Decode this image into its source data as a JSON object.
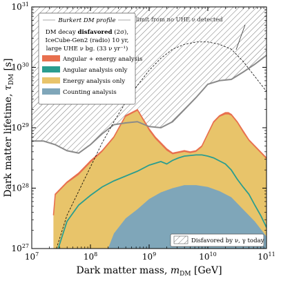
{
  "chart_data": {
    "type": "area",
    "xlabel": "Dark matter mass, ",
    "xlabel_symbol": "m",
    "xlabel_sub": "DM",
    "xlabel_unit": " [GeV]",
    "ylabel": "Dark matter lifetime, ",
    "ylabel_symbol": "τ",
    "ylabel_sub": "DM",
    "ylabel_unit": " [s]",
    "xscale": "log",
    "yscale": "log",
    "xlim": [
      10000000.0,
      100000000000.0
    ],
    "ylim": [
      1e+27,
      1e+31
    ],
    "x_ticks": [
      {
        "base": "10",
        "exp": "7"
      },
      {
        "base": "10",
        "exp": "8"
      },
      {
        "base": "10",
        "exp": "9"
      },
      {
        "base": "10",
        "exp": "10"
      },
      {
        "base": "10",
        "exp": "11"
      }
    ],
    "y_ticks": [
      {
        "base": "10",
        "exp": "27"
      },
      {
        "base": "10",
        "exp": "28"
      },
      {
        "base": "10",
        "exp": "29"
      },
      {
        "base": "10",
        "exp": "30"
      },
      {
        "base": "10",
        "exp": "31"
      }
    ],
    "legend": {
      "placement": "top-left",
      "title": "Burkert DM profile",
      "subtitle_lines": [
        {
          "pre": "DM decay ",
          "bold": "disfavored",
          "post": " (2σ),"
        },
        {
          "pre": "IceCube-Gen2 (radio) 10 yr,",
          "bold": "",
          "post": ""
        },
        {
          "pre": "large UHE ν bg. (33 ν yr⁻¹)",
          "bold": "",
          "post": ""
        }
      ],
      "entries": [
        {
          "label": "Angular + energy analysis",
          "color": "#e8704f"
        },
        {
          "label": "Angular analysis only",
          "color": "#2a9d8f"
        },
        {
          "label": "Energy analysis only",
          "color": "#e8c46a"
        },
        {
          "label": "Counting analysis",
          "color": "#7fa6b9"
        }
      ]
    },
    "hatch_legend": {
      "placement": "bottom-right",
      "label": "Disfavored by ν, γ today"
    },
    "annotation": {
      "text": "Lower limit from no UHE ν detected"
    },
    "series": [
      {
        "name": "Angular + energy analysis",
        "color": "#e8704f",
        "log_x": [
          7.37,
          7.4,
          7.6,
          7.8,
          8.0,
          8.2,
          8.4,
          8.6,
          8.8,
          9.0,
          9.1,
          9.2,
          9.3,
          9.4,
          9.5,
          9.6,
          9.7,
          9.8,
          9.9,
          10.0,
          10.1,
          10.2,
          10.3,
          10.35,
          10.4,
          10.5,
          10.6,
          10.7,
          10.8,
          10.9,
          11.0
        ],
        "log_y": [
          27.55,
          27.9,
          28.1,
          28.25,
          28.45,
          28.62,
          28.85,
          29.2,
          29.3,
          28.98,
          28.85,
          28.75,
          28.65,
          28.58,
          28.6,
          28.62,
          28.6,
          28.62,
          28.7,
          28.9,
          29.1,
          29.2,
          29.25,
          29.25,
          29.22,
          29.1,
          28.95,
          28.8,
          28.7,
          28.6,
          28.5
        ]
      },
      {
        "name": "Energy analysis only",
        "color": "#e8c46a",
        "log_x": [
          7.37,
          7.4,
          7.6,
          7.8,
          8.0,
          8.2,
          8.4,
          8.6,
          8.8,
          9.0,
          9.1,
          9.2,
          9.3,
          9.4,
          9.5,
          9.6,
          9.7,
          9.8,
          9.9,
          10.0,
          10.1,
          10.2,
          10.3,
          10.35,
          10.4,
          10.5,
          10.6,
          10.7,
          10.8,
          10.9,
          11.0
        ],
        "log_y": [
          27.55,
          27.88,
          28.08,
          28.22,
          28.42,
          28.6,
          28.83,
          29.18,
          29.28,
          28.95,
          28.82,
          28.72,
          28.62,
          28.56,
          28.58,
          28.6,
          28.58,
          28.6,
          28.68,
          28.88,
          29.08,
          29.18,
          29.22,
          29.22,
          29.2,
          29.08,
          28.92,
          28.78,
          28.68,
          28.58,
          28.48
        ]
      },
      {
        "name": "Angular analysis only",
        "color": "#2a9d8f",
        "log_x": [
          7.45,
          7.6,
          7.8,
          8.0,
          8.2,
          8.4,
          8.6,
          8.8,
          9.0,
          9.2,
          9.3,
          9.4,
          9.5,
          9.6,
          9.7,
          9.8,
          9.9,
          10.0,
          10.1,
          10.2,
          10.3,
          10.4,
          10.5,
          10.6,
          10.7,
          10.8,
          10.9,
          11.0
        ],
        "log_y": [
          27.0,
          27.45,
          27.72,
          27.88,
          28.02,
          28.12,
          28.2,
          28.28,
          28.38,
          28.44,
          28.4,
          28.46,
          28.5,
          28.53,
          28.54,
          28.55,
          28.55,
          28.53,
          28.5,
          28.45,
          28.4,
          28.3,
          28.15,
          28.02,
          27.9,
          27.72,
          27.55,
          27.35
        ]
      },
      {
        "name": "Counting analysis",
        "color": "#7fa6b9",
        "log_x": [
          8.3,
          8.4,
          8.6,
          8.8,
          9.0,
          9.2,
          9.4,
          9.6,
          9.8,
          10.0,
          10.2,
          10.4,
          10.6,
          10.8,
          11.0
        ],
        "log_y": [
          27.0,
          27.25,
          27.5,
          27.65,
          27.82,
          27.93,
          28.0,
          28.05,
          28.05,
          28.02,
          27.95,
          27.85,
          27.65,
          27.45,
          27.2
        ]
      },
      {
        "name": "Disfavored by ν, γ today",
        "color": "#8a8a8a",
        "log_x": [
          7.0,
          7.2,
          7.4,
          7.6,
          7.8,
          8.0,
          8.2,
          8.4,
          8.6,
          8.8,
          9.0,
          9.2,
          9.4,
          9.6,
          9.8,
          10.0,
          10.2,
          10.4,
          10.6,
          10.8,
          11.0
        ],
        "log_y": [
          28.78,
          28.78,
          28.72,
          28.62,
          28.58,
          28.72,
          28.9,
          29.05,
          29.08,
          29.1,
          29.02,
          29.0,
          29.1,
          29.3,
          29.5,
          29.72,
          29.78,
          29.8,
          29.92,
          30.05,
          30.2
        ]
      },
      {
        "name": "Lower limit from no UHE ν detected",
        "color": "#000000",
        "log_x": [
          7.42,
          7.6,
          7.8,
          8.0,
          8.2,
          8.4,
          8.6,
          8.8,
          9.0,
          9.2,
          9.4,
          9.6,
          9.8,
          10.0,
          10.2,
          10.4,
          10.6,
          10.8,
          11.0
        ],
        "log_y": [
          27.0,
          27.55,
          27.95,
          28.35,
          28.75,
          29.1,
          29.42,
          29.7,
          29.95,
          30.15,
          30.3,
          30.38,
          30.42,
          30.42,
          30.38,
          30.3,
          30.1,
          29.85,
          29.6
        ]
      }
    ]
  }
}
